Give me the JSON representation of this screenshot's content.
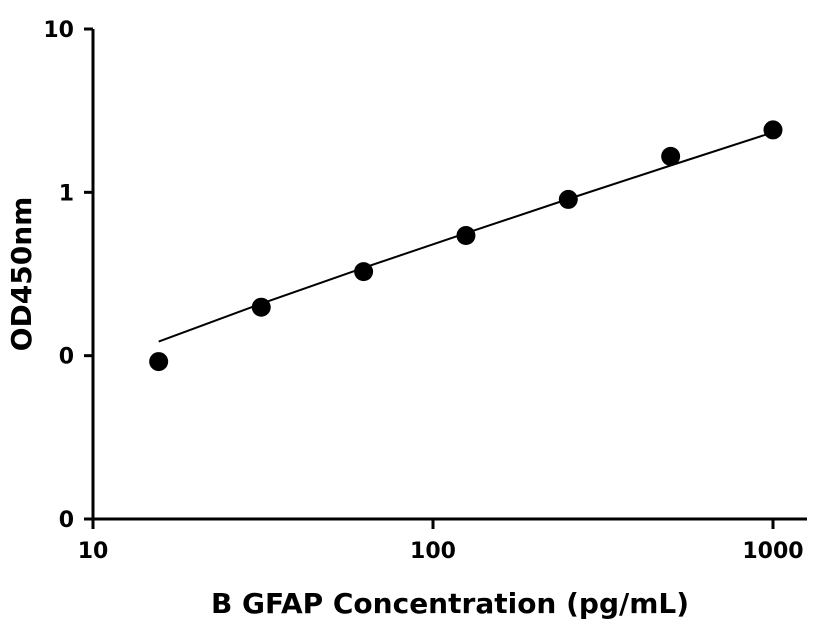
{
  "chart_data": {
    "type": "scatter",
    "title": "",
    "xlabel": "B GFAP Concentration (pg/mL)",
    "ylabel": "OD450nm",
    "x_scale": "log",
    "y_scale": "log",
    "xlim": [
      10,
      1200
    ],
    "ylim": [
      0.01,
      10
    ],
    "x_ticks": [
      10,
      100,
      1000
    ],
    "x_tick_labels": [
      "10",
      "100",
      "1000"
    ],
    "y_ticks": [
      0.01,
      0.1,
      1,
      10
    ],
    "y_tick_labels": [
      "0",
      "0",
      "1",
      "10"
    ],
    "grid": false,
    "legend": "none",
    "colors": {
      "points": "#000000",
      "fit_line": "#000000",
      "axes": "#000000"
    },
    "series": [
      {
        "x": [
          15.6,
          31.25,
          62.5,
          125,
          250,
          500,
          1000
        ],
        "y": [
          0.092,
          0.198,
          0.327,
          0.544,
          0.905,
          1.66,
          2.41
        ]
      }
    ],
    "fit_line": {
      "x": [
        15.6,
        31.25,
        62.5,
        125,
        250,
        500,
        1000
      ],
      "y": [
        0.122,
        0.208,
        0.345,
        0.562,
        0.91,
        1.46,
        2.33
      ]
    }
  }
}
